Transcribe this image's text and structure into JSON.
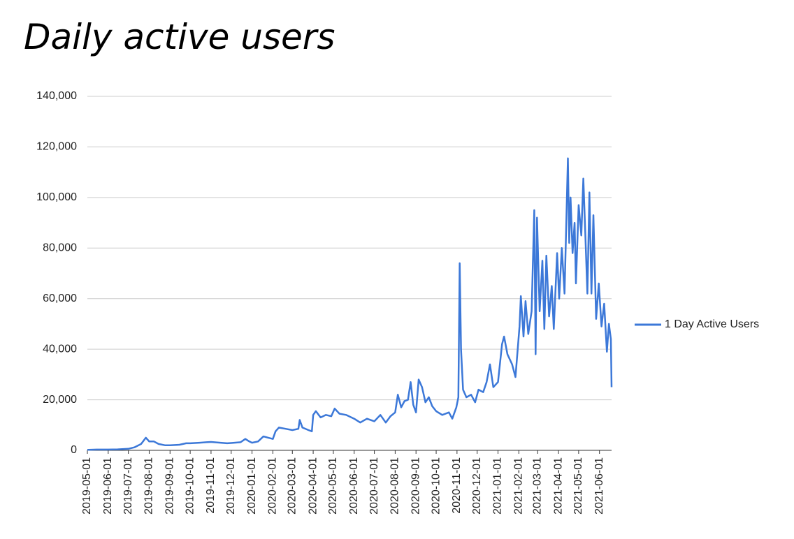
{
  "chart_data": {
    "type": "line",
    "title": "Daily active users",
    "x": [
      "2019-05-01",
      "2019-05-15",
      "2019-06-01",
      "2019-06-15",
      "2019-07-01",
      "2019-07-10",
      "2019-07-20",
      "2019-07-27",
      "2019-08-01",
      "2019-08-08",
      "2019-08-15",
      "2019-08-25",
      "2019-09-01",
      "2019-09-15",
      "2019-09-25",
      "2019-10-01",
      "2019-10-15",
      "2019-10-25",
      "2019-11-01",
      "2019-11-15",
      "2019-11-25",
      "2019-12-01",
      "2019-12-15",
      "2019-12-22",
      "2019-12-28",
      "2020-01-01",
      "2020-01-10",
      "2020-01-18",
      "2020-01-25",
      "2020-02-01",
      "2020-02-05",
      "2020-02-10",
      "2020-02-20",
      "2020-03-01",
      "2020-03-10",
      "2020-03-12",
      "2020-03-16",
      "2020-03-25",
      "2020-03-30",
      "2020-04-01",
      "2020-04-05",
      "2020-04-12",
      "2020-04-20",
      "2020-04-28",
      "2020-05-03",
      "2020-05-10",
      "2020-05-20",
      "2020-06-01",
      "2020-06-10",
      "2020-06-20",
      "2020-07-01",
      "2020-07-10",
      "2020-07-18",
      "2020-07-25",
      "2020-08-01",
      "2020-08-05",
      "2020-08-10",
      "2020-08-15",
      "2020-08-20",
      "2020-08-24",
      "2020-08-28",
      "2020-09-01",
      "2020-09-05",
      "2020-09-10",
      "2020-09-15",
      "2020-09-20",
      "2020-09-25",
      "2020-10-01",
      "2020-10-10",
      "2020-10-20",
      "2020-10-25",
      "2020-10-31",
      "2020-11-03",
      "2020-11-05",
      "2020-11-07",
      "2020-11-10",
      "2020-11-15",
      "2020-11-22",
      "2020-11-28",
      "2020-12-03",
      "2020-12-10",
      "2020-12-15",
      "2020-12-20",
      "2020-12-25",
      "2021-01-01",
      "2021-01-07",
      "2021-01-10",
      "2021-01-15",
      "2021-01-22",
      "2021-01-27",
      "2021-02-02",
      "2021-02-04",
      "2021-02-08",
      "2021-02-11",
      "2021-02-15",
      "2021-02-20",
      "2021-02-24",
      "2021-02-26",
      "2021-02-28",
      "2021-03-04",
      "2021-03-08",
      "2021-03-11",
      "2021-03-14",
      "2021-03-18",
      "2021-03-22",
      "2021-03-25",
      "2021-03-30",
      "2021-04-02",
      "2021-04-06",
      "2021-04-10",
      "2021-04-15",
      "2021-04-17",
      "2021-04-19",
      "2021-04-22",
      "2021-04-25",
      "2021-04-27",
      "2021-05-01",
      "2021-05-05",
      "2021-05-08",
      "2021-05-11",
      "2021-05-14",
      "2021-05-17",
      "2021-05-20",
      "2021-05-23",
      "2021-05-27",
      "2021-05-31",
      "2021-06-04",
      "2021-06-08",
      "2021-06-12",
      "2021-06-15",
      "2021-06-18",
      "2021-06-19"
    ],
    "series": [
      {
        "name": "1 Day Active Users",
        "color": "#3c78d8",
        "values": [
          200,
          300,
          300,
          400,
          600,
          1200,
          2500,
          5000,
          3500,
          3500,
          2500,
          2000,
          2000,
          2200,
          2800,
          2800,
          3000,
          3200,
          3300,
          3000,
          2800,
          2900,
          3200,
          4500,
          3500,
          3000,
          3500,
          5500,
          5000,
          4500,
          7500,
          9000,
          8500,
          8000,
          8500,
          12000,
          9000,
          8000,
          7500,
          14000,
          15500,
          13000,
          14000,
          13500,
          16500,
          14500,
          14000,
          12500,
          11000,
          12500,
          11500,
          14000,
          11000,
          13500,
          15000,
          22000,
          17000,
          19500,
          20000,
          27000,
          18000,
          15000,
          28000,
          25000,
          19000,
          21000,
          17500,
          15500,
          14000,
          15000,
          12500,
          17000,
          21000,
          74000,
          40000,
          24000,
          21000,
          22000,
          19000,
          24000,
          23000,
          27000,
          34000,
          25000,
          27000,
          42000,
          45000,
          38000,
          34000,
          29000,
          49000,
          61000,
          45000,
          59000,
          46000,
          55000,
          95000,
          38000,
          92000,
          55000,
          75000,
          48000,
          77000,
          53000,
          65000,
          48000,
          78000,
          60000,
          80000,
          62000,
          115500,
          82000,
          100000,
          78000,
          90000,
          66000,
          97000,
          85000,
          107500,
          85000,
          62000,
          102000,
          62000,
          93000,
          52000,
          66000,
          49000,
          58000,
          39000,
          50000,
          44000,
          25000
        ]
      }
    ],
    "xlim": [
      "2019-05-01",
      "2021-06-19"
    ],
    "xticks": [
      "2019-05-01",
      "2019-06-01",
      "2019-07-01",
      "2019-08-01",
      "2019-09-01",
      "2019-10-01",
      "2019-11-01",
      "2019-12-01",
      "2020-01-01",
      "2020-02-01",
      "2020-03-01",
      "2020-04-01",
      "2020-05-01",
      "2020-06-01",
      "2020-07-01",
      "2020-08-01",
      "2020-09-01",
      "2020-10-01",
      "2020-11-01",
      "2020-12-01",
      "2021-01-01",
      "2021-02-01",
      "2021-03-01",
      "2021-04-01",
      "2021-05-01",
      "2021-06-01"
    ],
    "ylim": [
      0,
      140000
    ],
    "yticks": [
      0,
      {
        "value": 20000,
        "label": "20,000"
      },
      {
        "value": 40000,
        "label": "40,000"
      },
      {
        "value": 60000,
        "label": "60,000"
      },
      {
        "value": 80000,
        "label": "80,000"
      },
      {
        "value": 100000,
        "label": "100,000"
      },
      {
        "value": 120000,
        "label": "120,000"
      },
      {
        "value": 140000,
        "label": "140,000"
      }
    ],
    "grid": true,
    "legend": "right"
  }
}
